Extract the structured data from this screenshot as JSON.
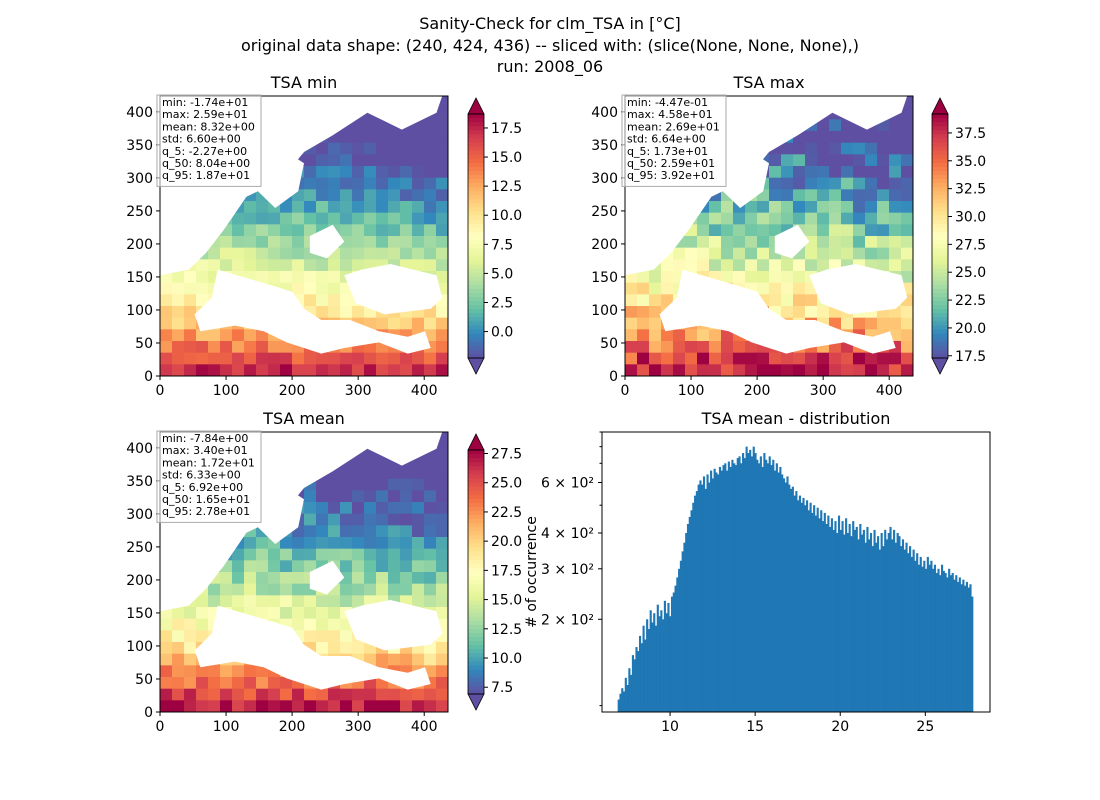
{
  "figure": {
    "title_line1": "Sanity-Check for clm_TSA in [°C]",
    "title_line2": "original data shape: (240, 424, 436) -- sliced with: (slice(None, None, None),)",
    "title_line3": "run: 2008_06"
  },
  "colormap": {
    "name": "Spectral_r",
    "stops": [
      "#5e4fa2",
      "#3288bd",
      "#66c2a5",
      "#abdda4",
      "#e6f598",
      "#ffffbf",
      "#fee08b",
      "#fdae61",
      "#f46d43",
      "#d53e4f",
      "#9e0142"
    ],
    "extend": "both"
  },
  "chart_data": [
    {
      "type": "heatmap",
      "title": "TSA min",
      "xlim": [
        0,
        436
      ],
      "ylim": [
        0,
        424
      ],
      "xticks": [
        0,
        100,
        200,
        300,
        400
      ],
      "yticks": [
        0,
        50,
        100,
        150,
        200,
        250,
        300,
        350,
        400
      ],
      "color_range": [
        -2.27,
        18.7
      ],
      "colorbar_ticks": [
        "0.0",
        "2.5",
        "5.0",
        "7.5",
        "10.0",
        "12.5",
        "15.0",
        "17.5"
      ],
      "colorbar_values": [
        0.0,
        2.5,
        5.0,
        7.5,
        10.0,
        12.5,
        15.0,
        17.5
      ],
      "stats": [
        "min: -1.74e+01",
        "max: 2.59e+01",
        "mean: 8.32e+00",
        "std: 6.60e+00",
        "q_5: -2.27e+00",
        "q_50: 8.04e+00",
        "q_95: 1.87e+01"
      ]
    },
    {
      "type": "heatmap",
      "title": "TSA max",
      "xlim": [
        0,
        436
      ],
      "ylim": [
        0,
        424
      ],
      "xticks": [
        0,
        100,
        200,
        300,
        400
      ],
      "yticks": [
        0,
        50,
        100,
        150,
        200,
        250,
        300,
        350,
        400
      ],
      "color_range": [
        17.3,
        39.2
      ],
      "colorbar_ticks": [
        "17.5",
        "20.0",
        "22.5",
        "25.0",
        "27.5",
        "30.0",
        "32.5",
        "35.0",
        "37.5"
      ],
      "colorbar_values": [
        17.5,
        20.0,
        22.5,
        25.0,
        27.5,
        30.0,
        32.5,
        35.0,
        37.5
      ],
      "stats": [
        "min: -4.47e-01",
        "max: 4.58e+01",
        "mean: 2.69e+01",
        "std: 6.64e+00",
        "q_5: 1.73e+01",
        "q_50: 2.59e+01",
        "q_95: 3.92e+01"
      ]
    },
    {
      "type": "heatmap",
      "title": "TSA mean",
      "xlim": [
        0,
        436
      ],
      "ylim": [
        0,
        424
      ],
      "xticks": [
        0,
        100,
        200,
        300,
        400
      ],
      "yticks": [
        0,
        50,
        100,
        150,
        200,
        250,
        300,
        350,
        400
      ],
      "color_range": [
        6.92,
        27.8
      ],
      "colorbar_ticks": [
        "7.5",
        "10.0",
        "12.5",
        "15.0",
        "17.5",
        "20.0",
        "22.5",
        "25.0",
        "27.5"
      ],
      "colorbar_values": [
        7.5,
        10.0,
        12.5,
        15.0,
        17.5,
        20.0,
        22.5,
        25.0,
        27.5
      ],
      "stats": [
        "min: -7.84e+00",
        "max: 3.40e+01",
        "mean: 1.72e+01",
        "std: 6.33e+00",
        "q_5: 6.92e+00",
        "q_50: 1.65e+01",
        "q_95: 2.78e+01"
      ]
    },
    {
      "type": "bar",
      "title": "TSA mean - distribution",
      "ylabel": "# of occurrence",
      "yscale": "log",
      "xlim": [
        6.0,
        28.8
      ],
      "ylim": [
        95,
        900
      ],
      "xticks": [
        10,
        15,
        20,
        25
      ],
      "yticks_major": [
        {
          "value": 200,
          "label": "2 × 10²"
        },
        {
          "value": 300,
          "label": "3 × 10²"
        },
        {
          "value": 400,
          "label": "4 × 10²"
        },
        {
          "value": 600,
          "label": "6 × 10²"
        }
      ],
      "yticks_minor": [
        100,
        500,
        700,
        800,
        900
      ],
      "color": "#1f77b4",
      "bin_range": [
        6.92,
        27.8
      ],
      "bin_count": 200,
      "values": [
        105,
        110,
        115,
        112,
        125,
        118,
        135,
        128,
        150,
        145,
        160,
        155,
        175,
        165,
        190,
        170,
        200,
        185,
        215,
        195,
        210,
        190,
        225,
        205,
        215,
        200,
        232,
        210,
        228,
        205,
        240,
        248,
        262,
        280,
        300,
        320,
        345,
        370,
        400,
        430,
        455,
        480,
        510,
        540,
        560,
        590,
        610,
        590,
        630,
        570,
        640,
        600,
        660,
        620,
        670,
        650,
        640,
        680,
        660,
        690,
        700,
        660,
        710,
        680,
        720,
        700,
        690,
        730,
        740,
        700,
        760,
        730,
        800,
        760,
        780,
        740,
        800,
        760,
        720,
        700,
        740,
        680,
        760,
        720,
        700,
        740,
        690,
        720,
        660,
        700,
        650,
        680,
        640,
        620,
        600,
        630,
        590,
        570,
        580,
        540,
        560,
        520,
        540,
        510,
        530,
        500,
        520,
        480,
        510,
        470,
        500,
        460,
        490,
        450,
        480,
        440,
        470,
        430,
        460,
        420,
        450,
        410,
        440,
        400,
        460,
        410,
        440,
        395,
        450,
        400,
        430,
        390,
        440,
        410,
        420,
        380,
        430,
        395,
        410,
        370,
        420,
        380,
        400,
        360,
        410,
        370,
        390,
        350,
        400,
        360,
        410,
        380,
        400,
        420,
        380,
        410,
        370,
        400,
        390,
        360,
        380,
        350,
        370,
        340,
        360,
        330,
        350,
        320,
        340,
        310,
        330,
        305,
        320,
        300,
        330,
        310,
        320,
        300,
        310,
        290,
        300,
        285,
        310,
        295,
        290,
        280,
        300,
        285,
        290,
        275,
        285,
        270,
        280,
        265,
        275,
        262,
        270,
        258,
        265,
        240
      ]
    }
  ]
}
